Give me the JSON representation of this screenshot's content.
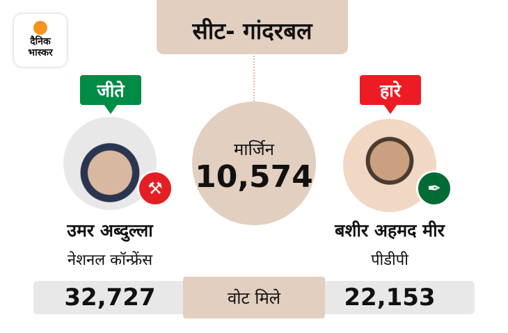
{
  "logo": {
    "line1": "दैनिक",
    "line2": "भास्कर"
  },
  "title": "सीट- गांदरबल",
  "margin": {
    "label": "मार्जिन",
    "value": "10,574"
  },
  "winner": {
    "status": "जीते",
    "name": "उमर अब्दुल्ला",
    "party": "नेशनल कॉन्फ्रेंस",
    "votes": "32,727",
    "color": "#008c45"
  },
  "loser": {
    "status": "हारे",
    "name": "बशीर अहमद मीर",
    "party": "पीडीपी",
    "votes": "22,153",
    "color": "#ed1c24"
  },
  "votes_label": "वोट मिले"
}
